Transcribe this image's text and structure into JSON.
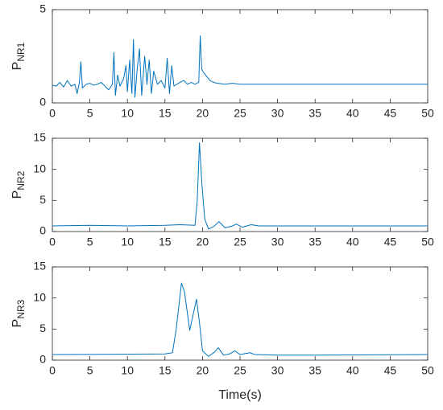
{
  "chart_data": [
    {
      "type": "line",
      "ylabel": "P",
      "ylabel_sub": "NR1",
      "xlim": [
        0,
        50
      ],
      "xticks": [
        0,
        5,
        10,
        15,
        20,
        25,
        30,
        35,
        40,
        45,
        50
      ],
      "ylim": [
        0,
        5
      ],
      "yticks": [
        0,
        5
      ],
      "series": [
        {
          "color": "#0072bd",
          "x": [
            0,
            0.5,
            1,
            1.5,
            2,
            2.5,
            3,
            3.3,
            3.6,
            3.8,
            4.0,
            4.5,
            5,
            5.5,
            6,
            6.5,
            7,
            7.5,
            8,
            8.2,
            8.4,
            8.7,
            9,
            9.5,
            9.8,
            10,
            10.3,
            10.6,
            10.8,
            11,
            11.3,
            11.6,
            11.9,
            12.3,
            12.6,
            12.9,
            13.2,
            13.5,
            14,
            14.5,
            15,
            15.3,
            15.6,
            15.9,
            16.2,
            17,
            17.5,
            18,
            18.5,
            19,
            19.5,
            19.7,
            19.9,
            20.2,
            20.6,
            21,
            21.5,
            22,
            23,
            24,
            25,
            27,
            30,
            50
          ],
          "values": [
            0.95,
            0.9,
            1.1,
            0.85,
            1.2,
            0.9,
            1.0,
            0.5,
            1.1,
            2.2,
            0.8,
            1.0,
            1.05,
            0.95,
            1.0,
            1.1,
            0.9,
            0.7,
            1.0,
            2.7,
            0.4,
            1.5,
            0.9,
            1.3,
            2.0,
            0.6,
            2.3,
            0.5,
            3.4,
            0.3,
            1.8,
            2.9,
            0.4,
            2.5,
            1.0,
            2.3,
            0.5,
            1.7,
            1.0,
            1.2,
            0.8,
            2.4,
            0.5,
            2.0,
            0.9,
            1.1,
            1.2,
            1.0,
            1.1,
            1.0,
            1.1,
            3.6,
            1.8,
            1.6,
            1.4,
            1.2,
            1.1,
            1.05,
            1.0,
            1.05,
            1.0,
            1.0,
            1.0,
            1.0
          ]
        }
      ]
    },
    {
      "type": "line",
      "ylabel": "P",
      "ylabel_sub": "NR2",
      "xlim": [
        0,
        50
      ],
      "xticks": [
        0,
        5,
        10,
        15,
        20,
        25,
        30,
        35,
        40,
        45,
        50
      ],
      "ylim": [
        0,
        15
      ],
      "yticks": [
        0,
        5,
        10,
        15
      ],
      "series": [
        {
          "color": "#0072bd",
          "x": [
            0,
            5,
            10,
            15,
            17,
            19,
            19.3,
            19.6,
            19.9,
            20.3,
            20.8,
            21.5,
            22.2,
            23,
            24,
            24.5,
            25.3,
            26.5,
            27.5,
            30,
            50
          ],
          "values": [
            0.9,
            1.0,
            0.9,
            1.0,
            1.1,
            1.0,
            5,
            14.3,
            8,
            2,
            0.4,
            0.8,
            1.6,
            0.6,
            0.9,
            1.2,
            0.7,
            1.1,
            0.9,
            0.9,
            0.9
          ]
        }
      ]
    },
    {
      "type": "line",
      "ylabel": "P",
      "ylabel_sub": "NR3",
      "xlabel": "Time(s)",
      "xlim": [
        0,
        50
      ],
      "xticks": [
        0,
        5,
        10,
        15,
        20,
        25,
        30,
        35,
        40,
        45,
        50
      ],
      "ylim": [
        0,
        15
      ],
      "yticks": [
        0,
        5,
        10,
        15
      ],
      "series": [
        {
          "color": "#0072bd",
          "x": [
            0,
            15,
            16,
            16.5,
            17.2,
            17.6,
            18.3,
            19.2,
            19.6,
            20,
            20.8,
            21.6,
            22.1,
            22.8,
            23.6,
            24.3,
            25,
            26.3,
            27,
            30,
            35,
            50
          ],
          "values": [
            0.9,
            1.0,
            1.2,
            5,
            12.4,
            11,
            4.8,
            9.8,
            6,
            1.5,
            0.6,
            1.3,
            2.0,
            0.8,
            1.0,
            1.5,
            0.9,
            1.2,
            0.9,
            0.8,
            0.8,
            0.9
          ]
        }
      ]
    }
  ]
}
